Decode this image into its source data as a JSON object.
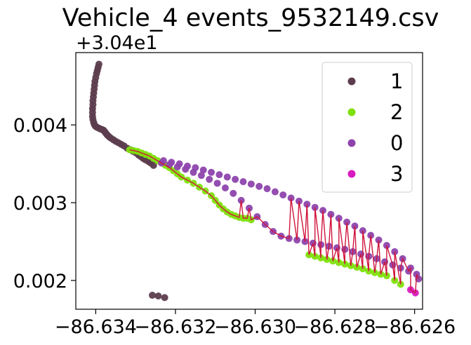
{
  "chart_data": {
    "type": "scatter",
    "title": "Vehicle_4 events_9532149.csv",
    "y_offset_label": "+3.04e1",
    "y_offset": 30.4,
    "xlabel": "",
    "ylabel": "",
    "xlim": [
      -86.6345,
      -86.6258
    ],
    "ylim": [
      0.00163,
      0.00493
    ],
    "x_ticks": [
      -86.634,
      -86.632,
      -86.63,
      -86.628,
      -86.626
    ],
    "x_tick_labels": [
      "−86.634",
      "−86.632",
      "−86.630",
      "−86.628",
      "−86.626"
    ],
    "y_ticks": [
      0.002,
      0.003,
      0.004
    ],
    "y_tick_labels": [
      "0.002",
      "0.003",
      "0.004"
    ],
    "grid": false,
    "legend": {
      "placement": "top-right",
      "entries": [
        {
          "label": "1",
          "color": "#5c3d4e"
        },
        {
          "label": "2",
          "color": "#7fe00c"
        },
        {
          "label": "0",
          "color": "#8e44ad"
        },
        {
          "label": "3",
          "color": "#d81bc0"
        }
      ]
    },
    "track_line_color": "#d0143c",
    "series": [
      {
        "name": "1",
        "color": "#5c3d4e",
        "x": [
          -86.63392,
          -86.63394,
          -86.63396,
          -86.63398,
          -86.634,
          -86.63402,
          -86.63403,
          -86.63404,
          -86.63405,
          -86.63406,
          -86.63407,
          -86.63407,
          -86.63408,
          -86.63408,
          -86.63408,
          -86.63407,
          -86.63405,
          -86.63403,
          -86.634,
          -86.63397,
          -86.63393,
          -86.63389,
          -86.63384,
          -86.6338,
          -86.63377,
          -86.63374,
          -86.63371,
          -86.63367,
          -86.63362,
          -86.63356,
          -86.6335,
          -86.63343,
          -86.63336,
          -86.63329,
          -86.63321,
          -86.63313,
          -86.63306,
          -86.63299,
          -86.63292,
          -86.63286,
          -86.63281,
          -86.63275,
          -86.63268,
          -86.63262,
          -86.63255,
          -86.63258,
          -86.63243,
          -86.63227
        ],
        "y": [
          0.00478,
          0.00474,
          0.0047,
          0.00466,
          0.00461,
          0.00456,
          0.00451,
          0.00446,
          0.00441,
          0.00436,
          0.00431,
          0.00426,
          0.00421,
          0.00416,
          0.00411,
          0.00407,
          0.00403,
          0.004,
          0.00398,
          0.00397,
          0.00396,
          0.00395,
          0.00394,
          0.00393,
          0.00391,
          0.00389,
          0.00387,
          0.00385,
          0.00383,
          0.00381,
          0.00379,
          0.00377,
          0.00375,
          0.00373,
          0.0037,
          0.00368,
          0.00366,
          0.00364,
          0.00361,
          0.00359,
          0.00357,
          0.00355,
          0.00353,
          0.00351,
          0.00348,
          0.00181,
          0.0018,
          0.00178
        ]
      },
      {
        "name": "2",
        "color": "#7fe00c",
        "x": [
          -86.63315,
          -86.63305,
          -86.63295,
          -86.63285,
          -86.63275,
          -86.63265,
          -86.63255,
          -86.63245,
          -86.63235,
          -86.63225,
          -86.63215,
          -86.63205,
          -86.63195,
          -86.63185,
          -86.6317,
          -86.63155,
          -86.6314,
          -86.63125,
          -86.6311,
          -86.631,
          -86.6309,
          -86.6308,
          -86.6307,
          -86.6306,
          -86.6305,
          -86.6304,
          -86.6303,
          -86.6302,
          -86.6301,
          -86.62865,
          -86.6285,
          -86.62835,
          -86.6282,
          -86.62805,
          -86.6279,
          -86.62775,
          -86.6276,
          -86.62745,
          -86.6273,
          -86.62715,
          -86.627,
          -86.62685,
          -86.6267,
          -86.6265,
          -86.62635
        ],
        "y": [
          0.00368,
          0.00367,
          0.00366,
          0.00364,
          0.00362,
          0.0036,
          0.00357,
          0.00354,
          0.00351,
          0.00348,
          0.00345,
          0.00341,
          0.00337,
          0.00333,
          0.00329,
          0.00325,
          0.0032,
          0.00315,
          0.00309,
          0.00303,
          0.00297,
          0.00292,
          0.00288,
          0.00285,
          0.00283,
          0.00281,
          0.0028,
          0.0028,
          0.00278,
          0.00233,
          0.00231,
          0.00229,
          0.00227,
          0.00225,
          0.00223,
          0.00221,
          0.00219,
          0.00217,
          0.00215,
          0.00212,
          0.0021,
          0.00208,
          0.00206,
          0.002,
          0.00195
        ]
      },
      {
        "name": "0",
        "color": "#8e44ad",
        "x": [
          -86.6323,
          -86.6321,
          -86.6319,
          -86.6317,
          -86.6315,
          -86.6313,
          -86.6311,
          -86.6309,
          -86.6307,
          -86.6305,
          -86.6303,
          -86.6301,
          -86.6299,
          -86.6297,
          -86.6295,
          -86.6293,
          -86.6291,
          -86.6289,
          -86.6287,
          -86.6285,
          -86.6283,
          -86.6281,
          -86.6279,
          -86.6277,
          -86.6275,
          -86.6273,
          -86.6271,
          -86.6269,
          -86.6267,
          -86.6265,
          -86.6263,
          -86.6261,
          -86.6259,
          -86.63235,
          -86.63215,
          -86.63195,
          -86.63175,
          -86.63155,
          -86.63135,
          -86.63115,
          -86.63095,
          -86.63075,
          -86.63055,
          -86.63035,
          -86.63015,
          -86.62995,
          -86.62975,
          -86.62955,
          -86.62935,
          -86.62915,
          -86.62895,
          -86.62875,
          -86.62855,
          -86.62835,
          -86.62815,
          -86.62795,
          -86.62775,
          -86.62755,
          -86.62735,
          -86.62715,
          -86.62695,
          -86.62675,
          -86.62655,
          -86.62635,
          -86.62615,
          -86.62595
        ],
        "y": [
          0.00354,
          0.00352,
          0.0035,
          0.00347,
          0.00345,
          0.00342,
          0.00339,
          0.00336,
          0.00333,
          0.0033,
          0.00327,
          0.00324,
          0.00321,
          0.00318,
          0.00314,
          0.0031,
          0.00306,
          0.00302,
          0.00298,
          0.00294,
          0.0029,
          0.00285,
          0.0028,
          0.00275,
          0.0027,
          0.00264,
          0.00258,
          0.00252,
          0.00245,
          0.00237,
          0.00228,
          0.00216,
          0.00202,
          0.00351,
          0.00349,
          0.00346,
          0.00343,
          0.00339,
          0.00335,
          0.0033,
          0.00325,
          0.00319,
          0.00312,
          0.00303,
          0.00293,
          0.00282,
          0.00272,
          0.00263,
          0.00257,
          0.00254,
          0.00252,
          0.0025,
          0.00248,
          0.00246,
          0.00244,
          0.00242,
          0.0024,
          0.00237,
          0.00234,
          0.00231,
          0.00228,
          0.00224,
          0.0022,
          0.00216,
          0.00212,
          0.00208
        ]
      },
      {
        "name": "3",
        "color": "#d81bc0",
        "x": [
          -86.6261,
          -86.62598
        ],
        "y": [
          0.00188,
          0.00184
        ]
      }
    ]
  }
}
